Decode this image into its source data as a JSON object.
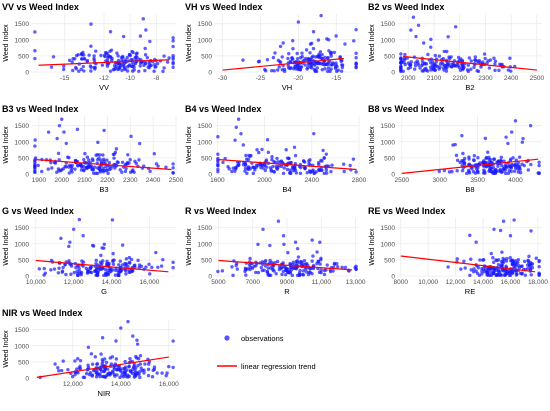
{
  "chart_data": [
    {
      "type": "scatter",
      "title": "VV vs Weed Index",
      "xlabel": "VV",
      "ylabel": "Weed Index",
      "xlim": [
        -17.5,
        -6.5
      ],
      "ylim": [
        0,
        1800
      ],
      "xticks": [
        -15,
        -12,
        -10,
        -8
      ],
      "yticks": [
        0,
        500,
        1000,
        1500
      ],
      "trend": [
        [
          -17,
          210
        ],
        [
          -7,
          380
        ]
      ],
      "cluster": {
        "xc": -11,
        "xs": 2.3,
        "yb": 280,
        "ys": 300
      },
      "notable": [
        [
          -9,
          1650
        ],
        [
          -11.5,
          1250
        ],
        [
          -10.5,
          1100
        ],
        [
          -13,
          800
        ],
        [
          -8.5,
          950
        ]
      ]
    },
    {
      "type": "scatter",
      "title": "VH vs Weed Index",
      "xlabel": "VH",
      "ylabel": "Weed Index",
      "xlim": [
        -31,
        -12
      ],
      "ylim": [
        0,
        1800
      ],
      "xticks": [
        -30,
        -25,
        -20,
        -15
      ],
      "yticks": [
        0,
        500,
        1000,
        1500
      ],
      "trend": [
        [
          -30,
          60
        ],
        [
          -14,
          420
        ]
      ],
      "cluster": {
        "xc": -18,
        "xs": 3,
        "yb": 280,
        "ys": 300
      },
      "notable": [
        [
          -17,
          1750
        ],
        [
          -20,
          1550
        ],
        [
          -18,
          1250
        ],
        [
          -22,
          900
        ],
        [
          -16,
          1000
        ]
      ]
    },
    {
      "type": "scatter",
      "title": "B2 vs Weed Index",
      "xlabel": "B2",
      "ylabel": "Weed Index",
      "xlim": [
        1960,
        2520
      ],
      "ylim": [
        0,
        1800
      ],
      "xticks": [
        2000,
        2100,
        2200,
        2300,
        2400,
        2500
      ],
      "yticks": [
        0,
        500,
        1000,
        1500
      ],
      "trend": [
        [
          1980,
          480
        ],
        [
          2500,
          60
        ]
      ],
      "cluster": {
        "xc": 2150,
        "xs": 130,
        "yb": 240,
        "ys": 260
      },
      "notable": [
        [
          2020,
          1700
        ],
        [
          2040,
          1450
        ],
        [
          2010,
          1300
        ],
        [
          2030,
          1100
        ],
        [
          2060,
          900
        ]
      ]
    },
    {
      "type": "scatter",
      "title": "B3 vs Weed Index",
      "xlabel": "B3",
      "ylabel": "Weed Index",
      "xlim": [
        1870,
        2500
      ],
      "ylim": [
        0,
        1800
      ],
      "xticks": [
        1900,
        2000,
        2100,
        2200,
        2300,
        2400,
        2500
      ],
      "yticks": [
        0,
        500,
        1000,
        1500
      ],
      "trend": [
        [
          1880,
          450
        ],
        [
          2480,
          140
        ]
      ],
      "cluster": {
        "xc": 2150,
        "xs": 160,
        "yb": 250,
        "ys": 260
      },
      "notable": [
        [
          2000,
          1700
        ],
        [
          1990,
          1500
        ],
        [
          2010,
          1300
        ],
        [
          1980,
          1100
        ],
        [
          2020,
          950
        ]
      ]
    },
    {
      "type": "scatter",
      "title": "B4 vs Weed Index",
      "xlabel": "B4",
      "ylabel": "Weed Index",
      "xlim": [
        1580,
        2800
      ],
      "ylim": [
        0,
        1800
      ],
      "xticks": [
        1600,
        2000,
        2400,
        2800
      ],
      "yticks": [
        0,
        500,
        1000,
        1500
      ],
      "trend": [
        [
          1600,
          450
        ],
        [
          2780,
          140
        ]
      ],
      "cluster": {
        "xc": 2100,
        "xs": 300,
        "yb": 250,
        "ys": 260
      },
      "notable": [
        [
          1780,
          1700
        ],
        [
          1760,
          1450
        ],
        [
          1800,
          1250
        ],
        [
          1750,
          1050
        ],
        [
          1820,
          900
        ]
      ]
    },
    {
      "type": "scatter",
      "title": "B8 vs Weed Index",
      "xlabel": "B8",
      "ylabel": "Weed Index",
      "xlim": [
        2450,
        4350
      ],
      "ylim": [
        0,
        1800
      ],
      "xticks": [
        2500,
        3000,
        3500,
        4000
      ],
      "yticks": [
        0,
        500,
        1000,
        1500
      ],
      "trend": [
        [
          2500,
          20
        ],
        [
          4300,
          460
        ]
      ],
      "cluster": {
        "xc": 3700,
        "xs": 300,
        "yb": 250,
        "ys": 280
      },
      "notable": [
        [
          4000,
          1650
        ],
        [
          4200,
          1500
        ],
        [
          3950,
          1300
        ],
        [
          4100,
          1100
        ],
        [
          3900,
          950
        ]
      ]
    },
    {
      "type": "scatter",
      "title": "G vs Weed Index",
      "xlabel": "G",
      "ylabel": "Weed Index",
      "xlim": [
        9800,
        17400
      ],
      "ylim": [
        0,
        1800
      ],
      "xticks": [
        10000,
        12000,
        14000,
        16000
      ],
      "yticks": [
        0,
        500,
        1000,
        1500
      ],
      "trend": [
        [
          10000,
          480
        ],
        [
          17000,
          130
        ]
      ],
      "cluster": {
        "xc": 13500,
        "xs": 1600,
        "yb": 250,
        "ys": 270
      },
      "notable": [
        [
          12300,
          1750
        ],
        [
          12000,
          1450
        ],
        [
          12500,
          1250
        ],
        [
          11800,
          1050
        ],
        [
          13000,
          950
        ]
      ]
    },
    {
      "type": "scatter",
      "title": "R vs Weed Index",
      "xlabel": "R",
      "ylabel": "Weed Index",
      "xlim": [
        4800,
        13200
      ],
      "ylim": [
        0,
        1800
      ],
      "xticks": [
        5000,
        7000,
        9000,
        11000,
        13000
      ],
      "yticks": [
        0,
        500,
        1000,
        1500
      ],
      "trend": [
        [
          5000,
          480
        ],
        [
          12800,
          190
        ]
      ],
      "cluster": {
        "xc": 9000,
        "xs": 1800,
        "yb": 250,
        "ys": 270
      },
      "notable": [
        [
          8500,
          1700
        ],
        [
          7600,
          1450
        ],
        [
          8800,
          1250
        ],
        [
          9500,
          1050
        ],
        [
          8000,
          950
        ]
      ]
    },
    {
      "type": "scatter",
      "title": "RE vs Weed Index",
      "xlabel": "RE",
      "ylabel": "Weed Index",
      "xlim": [
        7800,
        18300
      ],
      "ylim": [
        0,
        1800
      ],
      "xticks": [
        8000,
        10000,
        12000,
        14000,
        16000,
        18000
      ],
      "yticks": [
        0,
        500,
        1000,
        1500
      ],
      "trend": [
        [
          8000,
          620
        ],
        [
          17800,
          130
        ]
      ],
      "cluster": {
        "xc": 15500,
        "xs": 1400,
        "yb": 220,
        "ys": 260
      },
      "notable": [
        [
          15500,
          1700
        ],
        [
          14800,
          1450
        ],
        [
          16000,
          1250
        ],
        [
          13500,
          1050
        ],
        [
          17500,
          1400
        ]
      ]
    },
    {
      "type": "scatter",
      "title": "NIR vs Weed Index",
      "xlabel": "NIR",
      "ylabel": "Weed Index",
      "xlim": [
        10300,
        16300
      ],
      "ylim": [
        0,
        1800
      ],
      "xticks": [
        12000,
        14000,
        16000
      ],
      "yticks": [
        0,
        500,
        1000,
        1500
      ],
      "trend": [
        [
          10500,
          20
        ],
        [
          16000,
          650
        ]
      ],
      "cluster": {
        "xc": 13800,
        "xs": 1000,
        "yb": 250,
        "ys": 280
      },
      "notable": [
        [
          14300,
          1750
        ],
        [
          14000,
          1550
        ],
        [
          14500,
          1300
        ],
        [
          13800,
          1150
        ],
        [
          14700,
          1050
        ]
      ]
    }
  ],
  "legend": {
    "points_label": "observations",
    "line_label": "linear regression trend"
  },
  "colors": {
    "points": "#1a1aff",
    "line": "#ff0000",
    "grid": "#ebebeb",
    "axis_text": "#4d4d4d"
  }
}
